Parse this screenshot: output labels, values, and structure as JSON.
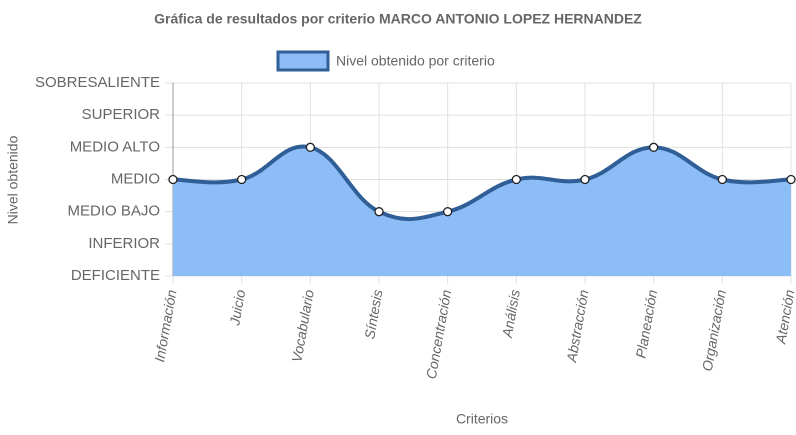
{
  "chart_data": {
    "type": "line",
    "title": "Gráfica de resultados por criterio MARCO ANTONIO LOPEZ HERNANDEZ",
    "x_label": "Criterios",
    "y_label": "Nivel obtenido",
    "categories": [
      "Información",
      "Juicio",
      "Vocabulario",
      "Síntesis",
      "Concentración",
      "Análisis",
      "Abstracción",
      "Planeación",
      "Organización",
      "Atención"
    ],
    "series": [
      {
        "name": "Nivel obtenido por criterio",
        "color": "#2f5f96",
        "fill": "#8cbdf7",
        "values": [
          3,
          3,
          4,
          2,
          2,
          3,
          3,
          4,
          3,
          3
        ]
      }
    ],
    "ylim": [
      0,
      6
    ],
    "yticks": [
      {
        "value": 0,
        "label": "DEFICIENTE"
      },
      {
        "value": 1,
        "label": "INFERIOR"
      },
      {
        "value": 2,
        "label": "MEDIO BAJO"
      },
      {
        "value": 3,
        "label": "MEDIO"
      },
      {
        "value": 4,
        "label": "MEDIO ALTO"
      },
      {
        "value": 5,
        "label": "SUPERIOR"
      },
      {
        "value": 6,
        "label": "SOBRESALIENTE"
      }
    ],
    "grid": true
  }
}
